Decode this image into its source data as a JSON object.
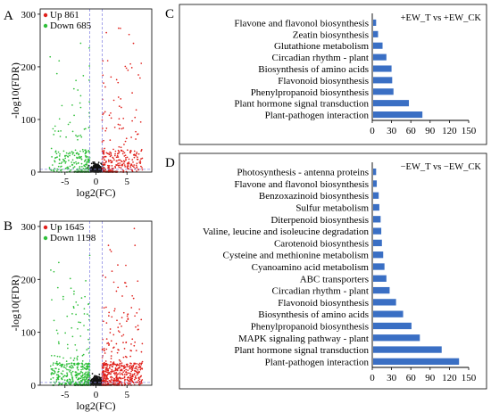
{
  "figure": {
    "colors": {
      "up": "#e0201b",
      "down": "#2fbf3a",
      "ns": "#111111",
      "threshold": "#8f8fe6",
      "bar": "#3a6fc4"
    }
  },
  "chart_data": [
    {
      "panel": "A",
      "type": "scatter",
      "xlabel": "log2(FC)",
      "ylabel": "-log10(FDR)",
      "xlim": [
        -9,
        9
      ],
      "ylim": [
        0,
        310
      ],
      "xticks": [
        -5,
        0,
        5
      ],
      "yticks": [
        0,
        100,
        200,
        300
      ],
      "thresholds": {
        "log2fc": [
          -1,
          1
        ],
        "neglog10fdr": 1.3
      },
      "grid": false,
      "legend": [
        {
          "label": "Up 861",
          "color": "#e0201b"
        },
        {
          "label": "Down 685",
          "color": "#2fbf3a"
        }
      ],
      "legend_position": "top-left",
      "counts": {
        "up": 861,
        "down": 685
      }
    },
    {
      "panel": "B",
      "type": "scatter",
      "xlabel": "log2(FC)",
      "ylabel": "-log10(FDR)",
      "xlim": [
        -9,
        9
      ],
      "ylim": [
        0,
        310
      ],
      "xticks": [
        -5,
        0,
        5
      ],
      "yticks": [
        0,
        100,
        200,
        300
      ],
      "thresholds": {
        "log2fc": [
          -1,
          1
        ],
        "neglog10fdr": 1.3
      },
      "grid": false,
      "legend": [
        {
          "label": "Up 1645",
          "color": "#e0201b"
        },
        {
          "label": "Down 1198",
          "color": "#2fbf3a"
        }
      ],
      "legend_position": "top-left",
      "counts": {
        "up": 1645,
        "down": 1198
      }
    },
    {
      "panel": "C",
      "type": "bar",
      "orientation": "horizontal",
      "legend_text": "+EW_T vs +EW_CK",
      "legend_position": "top-right",
      "categories": [
        "Flavone and flavonol biosynthesis",
        "Zeatin biosynthesis",
        "Glutathione metabolism",
        "Circadian rhythm - plant",
        "Biosynthesis of amino acids",
        "Flavonoid biosynthesis",
        "Phenylpropanoid biosynthesis",
        "Plant hormone signal transduction",
        "Plant-pathogen interaction"
      ],
      "values": [
        6,
        9,
        16,
        22,
        30,
        31,
        33,
        57,
        78
      ],
      "xticks": [
        0,
        30,
        60,
        90,
        120,
        150
      ],
      "xlim": [
        0,
        150
      ],
      "grid": false
    },
    {
      "panel": "D",
      "type": "bar",
      "orientation": "horizontal",
      "legend_text": "−EW_T vs −EW_CK",
      "legend_position": "top-right",
      "categories": [
        "Photosynthesis - antenna proteins",
        "Flavone and flavonol biosynthesis",
        "Benzoxazinoid biosynthesis",
        "Sulfur metabolism",
        "Diterpenoid biosynthesis",
        "Valine, leucine and isoleucine degradation",
        "Carotenoid biosynthesis",
        "Cysteine and methionine metabolism",
        "Cyanoamino acid metabolism",
        "ABC transporters",
        "Circadian rhythm - plant",
        "Flavonoid biosynthesis",
        "Biosynthesis of amino acids",
        "Phenylpropanoid biosynthesis",
        "MAPK signaling pathway - plant",
        "Plant hormone signal transduction",
        "Plant-pathogen interaction"
      ],
      "values": [
        6,
        7,
        10,
        11,
        13,
        14,
        15,
        17,
        19,
        22,
        27,
        37,
        48,
        61,
        74,
        108,
        135
      ],
      "xticks": [
        0,
        30,
        60,
        90,
        120,
        150
      ],
      "xlim": [
        0,
        150
      ],
      "grid": false
    }
  ]
}
